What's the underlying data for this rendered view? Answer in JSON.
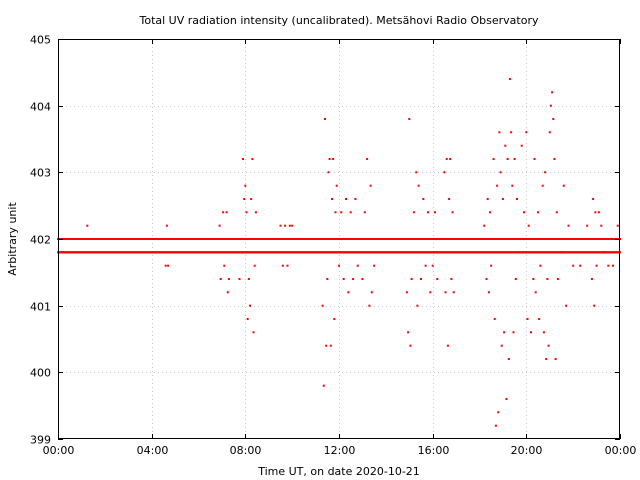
{
  "chart_data": {
    "type": "scatter",
    "title": "Total UV radiation intensity (uncalibrated). Metsähovi Radio Observatory",
    "xlabel": "Time UT, on date 2020-10-21",
    "ylabel": "Arbitrary unit",
    "xlim": [
      0,
      24
    ],
    "ylim": [
      399,
      405
    ],
    "x_ticks": [
      0,
      4,
      8,
      12,
      16,
      20,
      24
    ],
    "x_tick_labels": [
      "00:00",
      "04:00",
      "08:00",
      "12:00",
      "16:00",
      "20:00",
      "00:00"
    ],
    "y_ticks": [
      399,
      400,
      401,
      402,
      403,
      404,
      405
    ],
    "y_tick_labels": [
      "399",
      "400",
      "401",
      "402",
      "403",
      "404",
      "405"
    ],
    "grid": true,
    "legend": "none",
    "marker_color": "#ff0000",
    "baseline_levels": [
      401.8,
      402.0
    ],
    "series": [
      {
        "values_outliers": [
          [
            1.25,
            402.2
          ],
          [
            4.6,
            401.6
          ],
          [
            4.7,
            401.6
          ],
          [
            4.65,
            402.2
          ],
          [
            6.9,
            402.2
          ],
          [
            6.95,
            401.4
          ],
          [
            7.05,
            402.4
          ],
          [
            7.1,
            401.6
          ],
          [
            7.2,
            402.4
          ],
          [
            7.25,
            401.2
          ],
          [
            7.3,
            401.4
          ],
          [
            7.9,
            403.2
          ],
          [
            7.95,
            402.6
          ],
          [
            8.0,
            402.8
          ],
          [
            8.05,
            402.4
          ],
          [
            8.1,
            400.8
          ],
          [
            8.15,
            401.4
          ],
          [
            8.2,
            401.0
          ],
          [
            8.25,
            402.6
          ],
          [
            8.3,
            403.2
          ],
          [
            8.35,
            400.6
          ],
          [
            8.4,
            401.6
          ],
          [
            8.45,
            402.4
          ],
          [
            7.75,
            401.4
          ],
          [
            9.5,
            402.2
          ],
          [
            9.6,
            401.6
          ],
          [
            9.7,
            402.2
          ],
          [
            9.8,
            401.6
          ],
          [
            9.9,
            402.2
          ],
          [
            10.0,
            402.2
          ],
          [
            11.3,
            401.0
          ],
          [
            11.35,
            399.8
          ],
          [
            11.4,
            403.8
          ],
          [
            11.45,
            400.4
          ],
          [
            11.5,
            401.4
          ],
          [
            11.55,
            403.0
          ],
          [
            11.6,
            403.2
          ],
          [
            11.65,
            400.4
          ],
          [
            11.7,
            402.6
          ],
          [
            11.75,
            403.2
          ],
          [
            11.8,
            400.8
          ],
          [
            11.85,
            402.4
          ],
          [
            11.9,
            402.8
          ],
          [
            12.0,
            401.6
          ],
          [
            12.1,
            402.4
          ],
          [
            12.2,
            401.4
          ],
          [
            12.3,
            402.6
          ],
          [
            12.4,
            401.2
          ],
          [
            12.5,
            402.4
          ],
          [
            12.6,
            401.4
          ],
          [
            12.7,
            402.6
          ],
          [
            12.8,
            401.6
          ],
          [
            13.0,
            401.4
          ],
          [
            13.1,
            402.4
          ],
          [
            13.2,
            403.2
          ],
          [
            13.3,
            401.0
          ],
          [
            13.35,
            402.8
          ],
          [
            13.4,
            401.2
          ],
          [
            13.5,
            401.6
          ],
          [
            14.9,
            401.2
          ],
          [
            14.95,
            400.6
          ],
          [
            15.0,
            403.8
          ],
          [
            15.05,
            400.4
          ],
          [
            15.1,
            401.4
          ],
          [
            15.2,
            402.4
          ],
          [
            15.3,
            403.0
          ],
          [
            15.35,
            401.0
          ],
          [
            15.4,
            402.8
          ],
          [
            15.5,
            401.4
          ],
          [
            15.6,
            402.6
          ],
          [
            15.7,
            401.6
          ],
          [
            15.8,
            402.4
          ],
          [
            15.9,
            401.2
          ],
          [
            16.0,
            401.6
          ],
          [
            16.1,
            402.4
          ],
          [
            16.2,
            401.4
          ],
          [
            16.5,
            403.0
          ],
          [
            16.55,
            401.2
          ],
          [
            16.6,
            403.2
          ],
          [
            16.65,
            400.4
          ],
          [
            16.7,
            402.6
          ],
          [
            16.75,
            403.2
          ],
          [
            16.8,
            401.4
          ],
          [
            16.85,
            402.4
          ],
          [
            16.9,
            401.2
          ],
          [
            18.2,
            402.2
          ],
          [
            18.3,
            401.4
          ],
          [
            18.35,
            402.6
          ],
          [
            18.4,
            401.2
          ],
          [
            18.45,
            402.4
          ],
          [
            18.5,
            401.6
          ],
          [
            18.6,
            403.2
          ],
          [
            18.65,
            400.8
          ],
          [
            18.7,
            399.2
          ],
          [
            18.75,
            402.8
          ],
          [
            18.8,
            399.4
          ],
          [
            18.85,
            403.6
          ],
          [
            18.9,
            403.0
          ],
          [
            18.95,
            400.4
          ],
          [
            19.0,
            402.6
          ],
          [
            19.05,
            400.6
          ],
          [
            19.1,
            403.4
          ],
          [
            19.15,
            399.6
          ],
          [
            19.2,
            403.2
          ],
          [
            19.25,
            400.2
          ],
          [
            19.3,
            404.4
          ],
          [
            19.35,
            403.6
          ],
          [
            19.4,
            402.8
          ],
          [
            19.45,
            400.6
          ],
          [
            19.5,
            403.2
          ],
          [
            19.55,
            401.4
          ],
          [
            19.6,
            402.6
          ],
          [
            19.7,
            401.8
          ],
          [
            19.8,
            403.4
          ],
          [
            19.9,
            402.4
          ],
          [
            20.0,
            403.6
          ],
          [
            20.05,
            400.8
          ],
          [
            20.1,
            402.2
          ],
          [
            20.2,
            400.6
          ],
          [
            20.3,
            401.4
          ],
          [
            20.35,
            403.2
          ],
          [
            20.4,
            401.2
          ],
          [
            20.5,
            402.4
          ],
          [
            20.55,
            400.8
          ],
          [
            20.6,
            401.6
          ],
          [
            20.7,
            402.8
          ],
          [
            20.75,
            400.6
          ],
          [
            20.8,
            403.0
          ],
          [
            20.85,
            400.2
          ],
          [
            20.9,
            401.4
          ],
          [
            20.95,
            400.4
          ],
          [
            21.0,
            403.6
          ],
          [
            21.05,
            404.0
          ],
          [
            21.1,
            404.2
          ],
          [
            21.15,
            403.8
          ],
          [
            21.2,
            403.2
          ],
          [
            21.25,
            400.2
          ],
          [
            21.3,
            402.4
          ],
          [
            21.35,
            401.4
          ],
          [
            21.5,
            401.8
          ],
          [
            21.6,
            402.8
          ],
          [
            21.7,
            401.0
          ],
          [
            21.8,
            402.2
          ],
          [
            22.0,
            401.6
          ],
          [
            22.3,
            401.6
          ],
          [
            22.6,
            402.2
          ],
          [
            22.8,
            401.4
          ],
          [
            22.85,
            402.6
          ],
          [
            22.9,
            401.0
          ],
          [
            22.95,
            402.4
          ],
          [
            23.0,
            401.6
          ],
          [
            23.1,
            402.4
          ],
          [
            23.2,
            402.2
          ],
          [
            23.3,
            401.8
          ],
          [
            23.5,
            401.6
          ],
          [
            23.7,
            401.6
          ],
          [
            23.9,
            402.2
          ]
        ]
      }
    ]
  }
}
